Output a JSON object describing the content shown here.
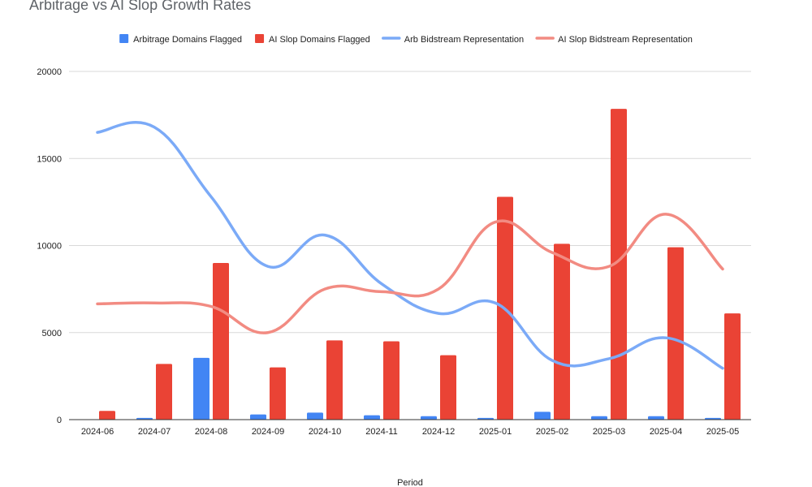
{
  "chart_data": {
    "type": "bar+line",
    "title": "Arbitrage vs AI Slop Growth Rates",
    "xlabel": "Period",
    "ylabel": "",
    "ylim": [
      0,
      20000
    ],
    "yticks": [
      0,
      5000,
      10000,
      15000,
      20000
    ],
    "grid": true,
    "legend_position": "top",
    "categories": [
      "2024-06",
      "2024-07",
      "2024-08",
      "2024-09",
      "2024-10",
      "2024-11",
      "2024-12",
      "2025-01",
      "2025-02",
      "2025-03",
      "2025-04",
      "2025-05"
    ],
    "series": [
      {
        "name": "Arbitrage Domains Flagged",
        "kind": "bar",
        "color": "#4285f4",
        "values": [
          0,
          100,
          3550,
          300,
          400,
          250,
          200,
          100,
          450,
          200,
          200,
          100
        ]
      },
      {
        "name": "AI Slop Domains Flagged",
        "kind": "bar",
        "color": "#ea4335",
        "values": [
          500,
          3200,
          9000,
          3000,
          4550,
          4500,
          3700,
          12800,
          10100,
          17850,
          9900,
          6100
        ]
      },
      {
        "name": "Arb Bidstream Representation",
        "kind": "line",
        "color": "#7baaf7",
        "values": [
          16500,
          16800,
          12800,
          8800,
          10600,
          7800,
          6100,
          6700,
          3400,
          3500,
          4700,
          2950
        ]
      },
      {
        "name": "AI Slop Bidstream Representation",
        "kind": "line",
        "color": "#f28b82",
        "values": [
          6650,
          6700,
          6500,
          5000,
          7500,
          7350,
          7500,
          11350,
          9600,
          8800,
          11800,
          8650
        ]
      }
    ]
  }
}
